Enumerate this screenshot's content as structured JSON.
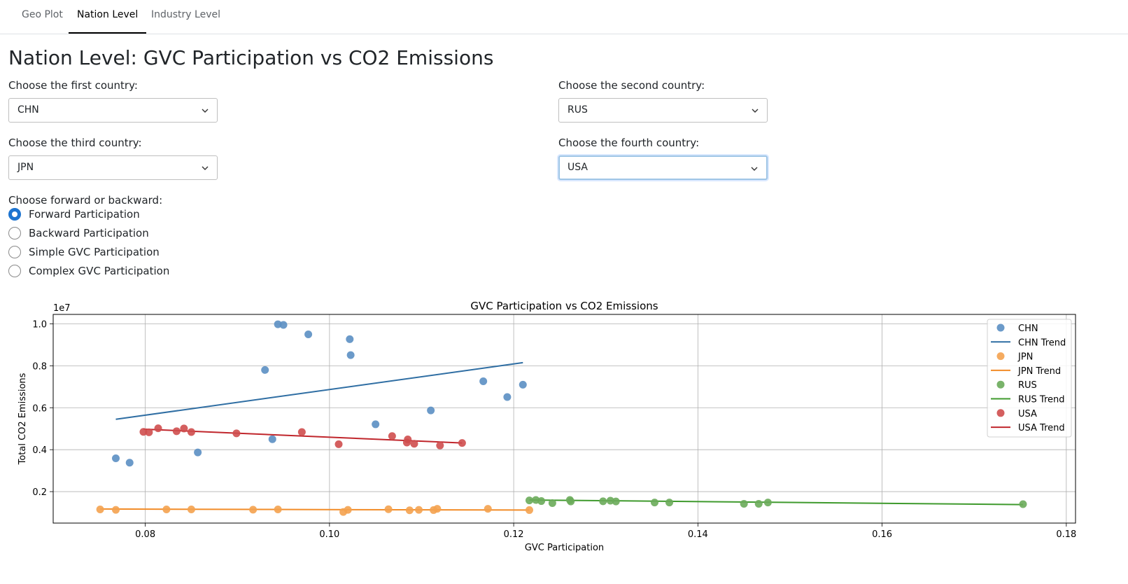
{
  "tabs": [
    {
      "label": "Geo Plot",
      "active": false
    },
    {
      "label": "Nation Level",
      "active": true
    },
    {
      "label": "Industry Level",
      "active": false
    }
  ],
  "page_title": "Nation Level: GVC Participation vs CO2 Emissions",
  "selects": {
    "first": {
      "label": "Choose the first country:",
      "value": "CHN"
    },
    "second": {
      "label": "Choose the second country:",
      "value": "RUS"
    },
    "third": {
      "label": "Choose the third country:",
      "value": "JPN"
    },
    "fourth": {
      "label": "Choose the fourth country:",
      "value": "USA"
    }
  },
  "radio_group": {
    "label": "Choose forward or backward:",
    "options": [
      "Forward Participation",
      "Backward Participation",
      "Simple GVC Participation",
      "Complex GVC Participation"
    ],
    "selected_index": 0
  },
  "icons": {
    "dropdown": "chevron-down-icon"
  },
  "chart_data": {
    "type": "scatter",
    "title": "GVC Participation vs CO2 Emissions",
    "xlabel": "GVC Participation",
    "ylabel": "Total CO2 Emissions",
    "y_offset_label": "1e7",
    "xlim": [
      0.07,
      0.181
    ],
    "ylim": [
      0.05,
      1.045
    ],
    "x_ticks": [
      "0.08",
      "0.10",
      "0.12",
      "0.14",
      "0.16",
      "0.18"
    ],
    "x_tick_values": [
      0.08,
      0.1,
      0.12,
      0.14,
      0.16,
      0.18
    ],
    "y_ticks": [
      "0.2",
      "0.4",
      "0.6",
      "0.8",
      "1.0"
    ],
    "y_tick_values": [
      0.2,
      0.4,
      0.6,
      0.8,
      1.0
    ],
    "grid": true,
    "legend_position": "top-right",
    "series": [
      {
        "name": "CHN",
        "trend_name": "CHN Trend",
        "color": "#5b8fc3",
        "trend_color": "#2f6ea3",
        "points": [
          [
            0.0768,
            0.359
          ],
          [
            0.0783,
            0.338
          ],
          [
            0.0857,
            0.387
          ],
          [
            0.093,
            0.78
          ],
          [
            0.0938,
            0.45
          ],
          [
            0.0944,
            0.998
          ],
          [
            0.095,
            0.995
          ],
          [
            0.0977,
            0.95
          ],
          [
            0.1022,
            0.927
          ],
          [
            0.1023,
            0.851
          ],
          [
            0.105,
            0.521
          ],
          [
            0.111,
            0.587
          ],
          [
            0.1167,
            0.726
          ],
          [
            0.1193,
            0.651
          ],
          [
            0.121,
            0.71
          ]
        ],
        "trend": [
          [
            0.0768,
            0.545
          ],
          [
            0.121,
            0.815
          ]
        ]
      },
      {
        "name": "JPN",
        "trend_name": "JPN Trend",
        "color": "#f4a24f",
        "trend_color": "#f28c28",
        "points": [
          [
            0.0751,
            0.115
          ],
          [
            0.0768,
            0.113
          ],
          [
            0.0823,
            0.115
          ],
          [
            0.085,
            0.115
          ],
          [
            0.0917,
            0.114
          ],
          [
            0.0944,
            0.115
          ],
          [
            0.1015,
            0.103
          ],
          [
            0.102,
            0.113
          ],
          [
            0.1064,
            0.116
          ],
          [
            0.1087,
            0.111
          ],
          [
            0.1097,
            0.113
          ],
          [
            0.1113,
            0.112
          ],
          [
            0.1117,
            0.118
          ],
          [
            0.1172,
            0.118
          ],
          [
            0.1217,
            0.112
          ]
        ],
        "trend": [
          [
            0.0751,
            0.117
          ],
          [
            0.1217,
            0.112
          ]
        ]
      },
      {
        "name": "RUS",
        "trend_name": "RUS Trend",
        "color": "#6aab5a",
        "trend_color": "#3f9a2d",
        "points": [
          [
            0.1217,
            0.158
          ],
          [
            0.1224,
            0.16
          ],
          [
            0.123,
            0.155
          ],
          [
            0.1242,
            0.145
          ],
          [
            0.1261,
            0.16
          ],
          [
            0.1262,
            0.153
          ],
          [
            0.1297,
            0.154
          ],
          [
            0.1305,
            0.157
          ],
          [
            0.1311,
            0.153
          ],
          [
            0.1353,
            0.148
          ],
          [
            0.1369,
            0.148
          ],
          [
            0.145,
            0.142
          ],
          [
            0.1466,
            0.142
          ],
          [
            0.1476,
            0.148
          ],
          [
            0.1753,
            0.14
          ]
        ],
        "trend": [
          [
            0.1217,
            0.16
          ],
          [
            0.1753,
            0.138
          ]
        ]
      },
      {
        "name": "USA",
        "trend_name": "USA Trend",
        "color": "#cf4e4e",
        "trend_color": "#c0262c",
        "points": [
          [
            0.0798,
            0.485
          ],
          [
            0.0804,
            0.483
          ],
          [
            0.0814,
            0.502
          ],
          [
            0.0834,
            0.488
          ],
          [
            0.0842,
            0.501
          ],
          [
            0.085,
            0.484
          ],
          [
            0.0899,
            0.478
          ],
          [
            0.097,
            0.484
          ],
          [
            0.101,
            0.426
          ],
          [
            0.1068,
            0.465
          ],
          [
            0.1084,
            0.434
          ],
          [
            0.1085,
            0.449
          ],
          [
            0.1092,
            0.428
          ],
          [
            0.112,
            0.42
          ],
          [
            0.1144,
            0.432
          ]
        ],
        "trend": [
          [
            0.0798,
            0.498
          ],
          [
            0.1144,
            0.432
          ]
        ]
      }
    ]
  }
}
